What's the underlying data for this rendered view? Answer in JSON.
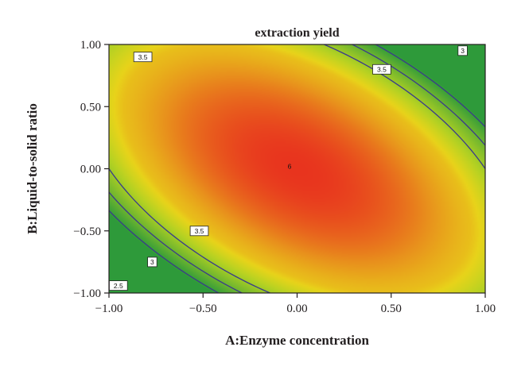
{
  "chart_data": {
    "type": "heatmap",
    "title": "extraction yield",
    "xlabel": "A:Enzyme concentration",
    "ylabel": "B:Liquid-to-solid ratio",
    "xlim": [
      -1.0,
      1.0
    ],
    "ylim": [
      -1.0,
      1.0
    ],
    "x_ticks": [
      "−1.00",
      "−0.50",
      "0.00",
      "0.50",
      "1.00"
    ],
    "y_ticks": [
      "−1.00",
      "−0.50",
      "0.00",
      "0.50",
      "1.00"
    ],
    "x_tick_values": [
      -1.0,
      -0.5,
      0.0,
      0.5,
      1.0
    ],
    "y_tick_values": [
      -1.0,
      -0.5,
      0.0,
      0.5,
      1.0
    ],
    "colormap": [
      "#2e9a3a",
      "#e8e81a",
      "#e8341e"
    ],
    "contour_color": "#3a3a8c",
    "grid": false,
    "contours": [
      {
        "level": 3.5,
        "label": "3.5",
        "label_points": [
          [
            -0.82,
            0.9
          ],
          [
            0.45,
            0.8
          ],
          [
            -0.52,
            -0.5
          ]
        ]
      },
      {
        "level": 3,
        "label": "3",
        "label_points": [
          [
            0.88,
            0.95
          ],
          [
            -0.77,
            -0.75
          ]
        ]
      },
      {
        "level": 2.5,
        "label": "2.5",
        "label_points": [
          [
            -0.95,
            -0.94
          ]
        ]
      },
      {
        "level": 6,
        "label": "6",
        "label_points": [
          [
            -0.04,
            0.02
          ]
        ]
      }
    ],
    "peak": {
      "x": 0.0,
      "y": 0.0,
      "value": 6
    }
  }
}
